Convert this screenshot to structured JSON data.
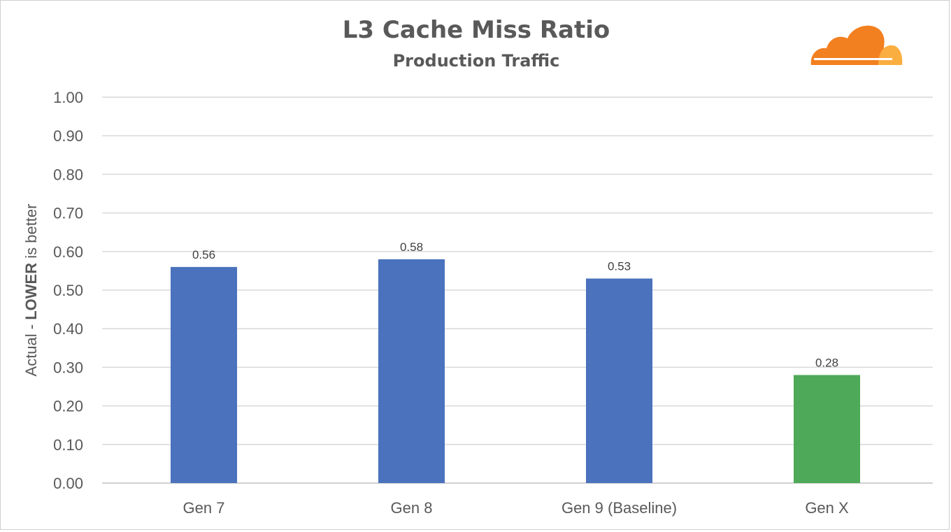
{
  "chart_data": {
    "type": "bar",
    "title": "L3 Cache Miss Ratio",
    "subtitle": "Production Traffic",
    "ylabel_prefix": "Actual - ",
    "ylabel_bold": "LOWER",
    "ylabel_suffix": " is better",
    "xlabel": "",
    "categories": [
      "Gen 7",
      "Gen 8",
      "Gen 9 (Baseline)",
      "Gen X"
    ],
    "values": [
      0.56,
      0.58,
      0.53,
      0.28
    ],
    "data_labels": [
      "0.56",
      "0.58",
      "0.53",
      "0.28"
    ],
    "bar_colors": [
      "#4a72bd",
      "#4a72bd",
      "#4a72bd",
      "#4eaa58"
    ],
    "ylim": [
      0,
      1
    ],
    "yticks": [
      "0.00",
      "0.10",
      "0.20",
      "0.30",
      "0.40",
      "0.50",
      "0.60",
      "0.70",
      "0.80",
      "0.90",
      "1.00"
    ],
    "grid": true,
    "legend": "none"
  },
  "logo": {
    "icon": "cloudflare-cloud-icon",
    "primary_color": "#f38020",
    "secondary_color": "#faae40"
  }
}
